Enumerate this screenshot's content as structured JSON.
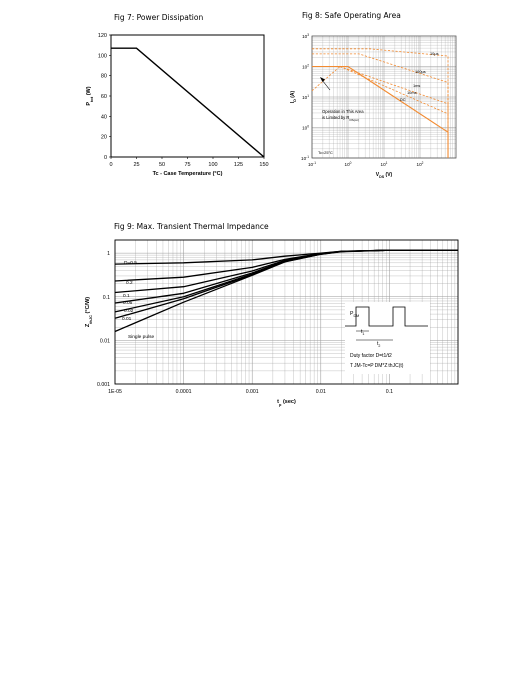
{
  "titles": {
    "fig7": "Fig 7:  Power Dissipation",
    "fig8": "Fig 8:  Safe Operating Area",
    "fig9": "Fig 9:  Max. Transient Thermal Impedance"
  },
  "colors": {
    "curve": "#000000",
    "soa_orange": "#f28a30",
    "grid": "#9a9a9a"
  },
  "chart_data": [
    {
      "id": "fig7",
      "type": "line",
      "title": "Fig 7:  Power Dissipation",
      "xlabel": "Tc - Case Temperature (°C)",
      "ylabel_main": "P",
      "ylabel_sub": "tot",
      "ylabel_unit": " (W)",
      "xlim": [
        0,
        150
      ],
      "ylim": [
        0,
        120
      ],
      "xticks": [
        "0",
        "25",
        "50",
        "75",
        "100",
        "125",
        "150"
      ],
      "yticks": [
        "0",
        "20",
        "40",
        "60",
        "80",
        "100",
        "120"
      ],
      "grid": false,
      "series": [
        {
          "x": [
            0,
            25,
            150
          ],
          "y": [
            107,
            107,
            0
          ]
        }
      ]
    },
    {
      "id": "fig8",
      "type": "line",
      "title": "Fig 8:  Safe Operating Area",
      "xscale": "log",
      "yscale": "log",
      "xlim": [
        0.1,
        1000
      ],
      "ylim": [
        0.1,
        1000
      ],
      "xlabel_main": "V",
      "xlabel_sub": "DS",
      "xlabel_unit": " (V)",
      "ylabel_main": "I",
      "ylabel_sub": "D",
      "ylabel_unit": " (A)",
      "xticks": [
        {
          "base": "10",
          "exp": "-1"
        },
        {
          "base": "10",
          "exp": "0"
        },
        {
          "base": "10",
          "exp": "1"
        },
        {
          "base": "10",
          "exp": "2"
        }
      ],
      "yticks": [
        {
          "base": "10",
          "exp": "-1"
        },
        {
          "base": "10",
          "exp": "0"
        },
        {
          "base": "10",
          "exp": "1"
        },
        {
          "base": "10",
          "exp": "2"
        },
        {
          "base": "10",
          "exp": "3"
        }
      ],
      "grid": true,
      "series": [
        {
          "name": "10µs",
          "style": "dashed",
          "x": [
            0.1,
            4,
            600,
            600
          ],
          "y": [
            380,
            380,
            220,
            0.1
          ]
        },
        {
          "name": "100µs",
          "style": "dashed",
          "x": [
            0.1,
            2,
            600,
            600
          ],
          "y": [
            260,
            260,
            30,
            0.1
          ]
        },
        {
          "name": "1ms",
          "style": "dashed",
          "x": [
            0.6,
            600,
            600
          ],
          "y": [
            100,
            6,
            0.1
          ]
        },
        {
          "name": "10ms",
          "style": "dashed",
          "x": [
            0.6,
            600,
            600
          ],
          "y": [
            100,
            2.8,
            0.1
          ]
        },
        {
          "name": "DC",
          "style": "solid",
          "x": [
            0.1,
            1,
            600,
            600
          ],
          "y": [
            100,
            100,
            0.7,
            0.1
          ]
        },
        {
          "name": "Rds_limit",
          "style": "dashed",
          "x": [
            0.1,
            0.6
          ],
          "y": [
            16,
            100
          ]
        }
      ],
      "annotations": {
        "region_line1": "Operation in This Area",
        "region_line2_main": "is Limited by R",
        "region_line2_sub": "DS(on)",
        "tc": "Tc=25°C"
      }
    },
    {
      "id": "fig9",
      "type": "line",
      "title": "Fig 9:  Max. Transient Thermal Impedance",
      "xscale": "log",
      "yscale": "log",
      "xlim": [
        1e-05,
        1
      ],
      "ylim": [
        0.001,
        2
      ],
      "xlabel_main": "t",
      "xlabel_sub": "p",
      "xlabel_unit": " (sec)",
      "ylabel_main": "Z",
      "ylabel_sub": "thJC",
      "ylabel_unit": " (°C/W)",
      "xticks": [
        "1E-05",
        "0.0001",
        "0.001",
        "0.01",
        "0.1"
      ],
      "yticks": [
        "0.001",
        "0.01",
        "0.1",
        "1"
      ],
      "grid": true,
      "series": [
        {
          "name": "D=0.5",
          "x": [
            1e-05,
            0.0001,
            0.001,
            0.003,
            0.01,
            0.02,
            0.1,
            1
          ],
          "y": [
            0.56,
            0.6,
            0.7,
            0.85,
            1.0,
            1.1,
            1.17,
            1.17
          ]
        },
        {
          "name": "0.2",
          "x": [
            1e-05,
            0.0001,
            0.001,
            0.003,
            0.01,
            0.02,
            0.1,
            1
          ],
          "y": [
            0.23,
            0.28,
            0.47,
            0.72,
            0.98,
            1.1,
            1.17,
            1.17
          ]
        },
        {
          "name": "0.1",
          "x": [
            1e-05,
            0.0001,
            0.001,
            0.003,
            0.01,
            0.02,
            0.1,
            1
          ],
          "y": [
            0.125,
            0.17,
            0.39,
            0.68,
            0.96,
            1.09,
            1.17,
            1.17
          ]
        },
        {
          "name": "0.05",
          "x": [
            1e-05,
            0.0001,
            0.001,
            0.003,
            0.01,
            0.02,
            0.1,
            1
          ],
          "y": [
            0.072,
            0.12,
            0.35,
            0.66,
            0.95,
            1.09,
            1.17,
            1.17
          ]
        },
        {
          "name": "0.02",
          "x": [
            1e-05,
            0.0001,
            0.001,
            0.003,
            0.01,
            0.02,
            0.1,
            1
          ],
          "y": [
            0.045,
            0.1,
            0.33,
            0.65,
            0.95,
            1.09,
            1.17,
            1.17
          ]
        },
        {
          "name": "0.01",
          "x": [
            1e-05,
            0.0001,
            0.001,
            0.003,
            0.01,
            0.02,
            0.1,
            1
          ],
          "y": [
            0.032,
            0.09,
            0.32,
            0.64,
            0.95,
            1.09,
            1.17,
            1.17
          ]
        },
        {
          "name": "Single pulse",
          "x": [
            1e-05,
            0.0001,
            0.001,
            0.003,
            0.01,
            0.02,
            0.1,
            1
          ],
          "y": [
            0.016,
            0.075,
            0.31,
            0.63,
            0.94,
            1.08,
            1.17,
            1.17
          ]
        }
      ],
      "inset": {
        "p_main": "P",
        "p_sub": "DM",
        "t1": "t",
        "t1_sub": "1",
        "t2": "t",
        "t2_sub": "2",
        "duty": "Duty factor D=t1/t2",
        "formula": "T JM-Tc=P DM*Z thJC(t)"
      }
    }
  ]
}
